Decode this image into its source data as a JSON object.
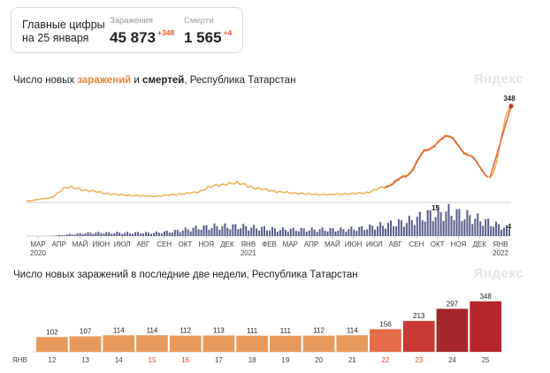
{
  "header": {
    "heading": "Главные цифры на 25 января",
    "cases_label": "Заражения",
    "cases_value": "45 873",
    "cases_delta": "+348",
    "deaths_label": "Смерти",
    "deaths_value": "1 565",
    "deaths_delta": "+4"
  },
  "brand": "Яндекс",
  "chart1": {
    "title_prefix": "Число новых ",
    "title_infections": "заражений",
    "title_and": " и ",
    "title_deaths": "смертей",
    "title_suffix": ", Республика Татарстан"
  },
  "chart2": {
    "title": "Число новых заражений в последние две недели, Республика Татарстан"
  },
  "colors": {
    "infections_line": "#f0b35a",
    "infections_peak": "#e06a3a",
    "deaths_bars": "#5a5d8a",
    "weekend_label": "#e04a3a"
  },
  "chart_data": [
    {
      "type": "line",
      "title": "Число новых заражений и смертей, Республика Татарстан",
      "x_ticks": [
        "МАР",
        "АПР",
        "МАЙ",
        "ИЮН",
        "ИЮЛ",
        "АВГ",
        "СЕН",
        "ОКТ",
        "НОЯ",
        "ДЕК",
        "ЯНВ",
        "ФЕВ",
        "МАР",
        "АПР",
        "МАЙ",
        "ИЮН",
        "ИЮЛ",
        "АВГ",
        "СЕН",
        "ОКТ",
        "НОЯ",
        "ДЕК",
        "ЯНВ"
      ],
      "x_tick_years": {
        "0": "2020",
        "10": "2021",
        "22": "2022"
      },
      "infections_monthly": [
        5,
        15,
        55,
        42,
        30,
        25,
        22,
        28,
        36,
        62,
        70,
        50,
        38,
        32,
        28,
        30,
        34,
        55,
        95,
        190,
        240,
        170,
        90,
        348
      ],
      "infections_peak_label": "348",
      "deaths_monthly": [
        0,
        0,
        1,
        2,
        2,
        2,
        2,
        3,
        5,
        6,
        6,
        5,
        4,
        4,
        4,
        4,
        5,
        7,
        9,
        13,
        15,
        12,
        8,
        4
      ],
      "deaths_peak_label": "15",
      "deaths_last_label": "4"
    },
    {
      "type": "bar",
      "title": "Число новых заражений в последние две недели, Республика Татарстан",
      "month_label": "ЯНВ",
      "categories": [
        "12",
        "13",
        "14",
        "15",
        "16",
        "17",
        "18",
        "19",
        "20",
        "21",
        "22",
        "23",
        "24",
        "25"
      ],
      "values": [
        102,
        107,
        114,
        114,
        112,
        113,
        111,
        111,
        112,
        114,
        156,
        213,
        297,
        348
      ],
      "value_labels": [
        "102",
        "107",
        "114",
        "114",
        "112",
        "113",
        "111",
        "111",
        "112",
        "114",
        "156",
        "213",
        "297",
        "348"
      ],
      "weekend_days": [
        "15",
        "16",
        "22",
        "23"
      ],
      "bar_colors": [
        "#e89a5c",
        "#e89a5c",
        "#e89a5c",
        "#e89a5c",
        "#e89a5c",
        "#e89a5c",
        "#e89a5c",
        "#e89a5c",
        "#e89a5c",
        "#e89a5c",
        "#e66d4a",
        "#c93b34",
        "#a5262b",
        "#b5262b"
      ]
    }
  ]
}
